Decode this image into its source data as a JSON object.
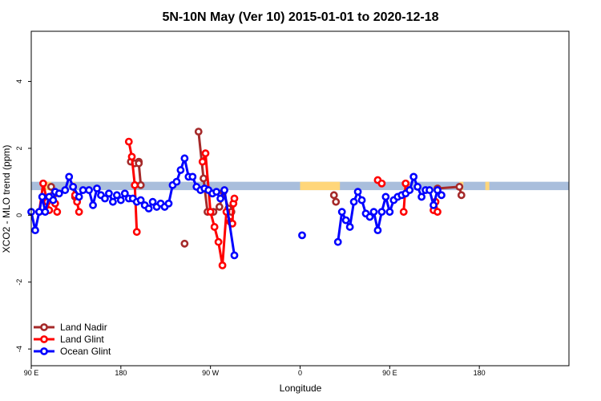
{
  "chart_data": {
    "type": "line",
    "title": "5N-10N May (Ver 10)   2015-01-01 to 2020-12-18",
    "xlabel": "Longitude",
    "ylabel": "XCO2 - MLO trend (ppm)",
    "xlim": [
      -90,
      180
    ],
    "ylim": [
      -4.5,
      5.5
    ],
    "xticks": [
      {
        "value": -90,
        "label": "90 E"
      },
      {
        "value": -45,
        "label": "180"
      },
      {
        "value": 0,
        "label": "90 W"
      },
      {
        "value": 45,
        "label": "0"
      },
      {
        "value": 90,
        "label": "90 E"
      },
      {
        "value": 135,
        "label": "180"
      }
    ],
    "yticks": [
      -4,
      -2,
      0,
      2,
      4
    ],
    "grid": false,
    "legend_position": "bottom-left",
    "land_band": {
      "y_range": [
        0.75,
        1.0
      ],
      "ocean_color": "#A9BEDC",
      "land_color": "#FFD67A",
      "land_segments": [
        [
          -84,
          -80
        ],
        [
          -69,
          -68
        ],
        [
          45,
          65
        ],
        [
          97,
          100
        ],
        [
          125,
          127
        ],
        [
          138,
          140
        ]
      ]
    },
    "series": [
      {
        "name": "Land Nadir",
        "color": "#A52A2A",
        "segments": [
          [
            [
              -80,
              0.85
            ],
            [
              -79,
              0.6
            ]
          ],
          [
            [
              -69,
              0.85
            ],
            [
              -68,
              0.55
            ]
          ],
          [
            [
              -40,
              1.6
            ],
            [
              -38,
              1.55
            ],
            [
              -36,
              1.6
            ]
          ],
          [
            [
              -36,
              1.55
            ],
            [
              -35,
              0.9
            ]
          ],
          [
            [
              -13,
              -0.85
            ]
          ],
          [
            [
              -6,
              2.5
            ],
            [
              -3.5,
              1.1
            ],
            [
              -1.5,
              0.1
            ],
            [
              1.5,
              0.1
            ],
            [
              4.5,
              0.25
            ],
            [
              6.5,
              0.7
            ],
            [
              9,
              0.2
            ],
            [
              10.5,
              0.1
            ]
          ],
          [
            [
              62,
              0.6
            ],
            [
              63,
              0.4
            ]
          ],
          [
            [
              114,
              0.8
            ],
            [
              125,
              0.85
            ],
            [
              126,
              0.6
            ]
          ]
        ]
      },
      {
        "name": "Land Glint",
        "color": "#FF0000",
        "segments": [
          [
            [
              -86,
              0.1
            ],
            [
              -84,
              0.95
            ],
            [
              -82,
              0.4
            ],
            [
              -81,
              0.15
            ]
          ],
          [
            [
              -78,
              0.35
            ],
            [
              -77,
              0.1
            ]
          ],
          [
            [
              -68,
              0.6
            ],
            [
              -67,
              0.4
            ],
            [
              -66,
              0.1
            ]
          ],
          [
            [
              -41,
              2.2
            ],
            [
              -39.5,
              1.75
            ],
            [
              -38,
              0.9
            ],
            [
              -37,
              -0.5
            ]
          ],
          [
            [
              -4,
              1.6
            ],
            [
              -2.5,
              1.85
            ],
            [
              0,
              0.1
            ],
            [
              2,
              -0.35
            ],
            [
              4,
              -0.8
            ],
            [
              6,
              -1.5
            ],
            [
              8,
              0.1
            ],
            [
              10,
              -0.2
            ],
            [
              11,
              -0.25
            ],
            [
              11.5,
              0.35
            ],
            [
              12,
              0.5
            ]
          ],
          [
            [
              84,
              1.05
            ],
            [
              86,
              0.95
            ]
          ],
          [
            [
              97,
              0.1
            ],
            [
              98,
              0.95
            ]
          ],
          [
            [
              112,
              0.15
            ],
            [
              113,
              0.4
            ],
            [
              114,
              0.1
            ]
          ]
        ]
      },
      {
        "name": "Ocean Glint",
        "color": "#0000FF",
        "segments": [
          [
            [
              -90,
              0.1
            ],
            [
              -88,
              -0.45
            ],
            [
              -86,
              0.1
            ],
            [
              -84.5,
              0.55
            ],
            [
              -83,
              0.1
            ],
            [
              -81,
              0.55
            ],
            [
              -79,
              0.45
            ],
            [
              -78,
              0.7
            ],
            [
              -76,
              0.65
            ],
            [
              -73,
              0.75
            ],
            [
              -71,
              1.15
            ],
            [
              -69,
              0.85
            ],
            [
              -66,
              0.55
            ],
            [
              -64,
              0.75
            ],
            [
              -61,
              0.75
            ],
            [
              -59,
              0.3
            ],
            [
              -57,
              0.8
            ],
            [
              -55,
              0.6
            ],
            [
              -53,
              0.5
            ],
            [
              -51,
              0.65
            ],
            [
              -49,
              0.4
            ],
            [
              -47,
              0.6
            ],
            [
              -45,
              0.45
            ],
            [
              -43,
              0.65
            ],
            [
              -41,
              0.5
            ],
            [
              -39,
              0.5
            ],
            [
              -37,
              0.4
            ],
            [
              -35,
              0.45
            ],
            [
              -33,
              0.3
            ],
            [
              -31,
              0.2
            ],
            [
              -29,
              0.4
            ],
            [
              -27,
              0.25
            ],
            [
              -25,
              0.35
            ],
            [
              -23,
              0.25
            ],
            [
              -21,
              0.35
            ],
            [
              -19,
              0.9
            ],
            [
              -17,
              1.0
            ],
            [
              -15,
              1.35
            ],
            [
              -13,
              1.7
            ],
            [
              -11,
              1.15
            ],
            [
              -9,
              1.15
            ],
            [
              -7,
              0.85
            ],
            [
              -5,
              0.75
            ],
            [
              -3,
              0.8
            ],
            [
              -1,
              0.75
            ],
            [
              1,
              0.65
            ],
            [
              3,
              0.7
            ],
            [
              5,
              0.5
            ],
            [
              7,
              0.75
            ],
            [
              12,
              -1.2
            ]
          ],
          [
            [
              46,
              -0.6
            ]
          ],
          [
            [
              64,
              -0.8
            ],
            [
              66,
              0.1
            ],
            [
              68,
              -0.15
            ],
            [
              70,
              -0.35
            ],
            [
              72,
              0.4
            ],
            [
              74,
              0.7
            ],
            [
              76,
              0.45
            ],
            [
              78,
              0.05
            ],
            [
              80,
              -0.05
            ],
            [
              82,
              0.1
            ],
            [
              84,
              -0.45
            ],
            [
              86,
              0.1
            ],
            [
              88,
              0.55
            ],
            [
              90,
              0.1
            ],
            [
              92,
              0.45
            ],
            [
              94,
              0.55
            ],
            [
              96,
              0.6
            ],
            [
              98,
              0.65
            ],
            [
              100,
              0.75
            ],
            [
              102,
              1.15
            ],
            [
              104,
              0.85
            ],
            [
              106,
              0.55
            ],
            [
              108,
              0.75
            ],
            [
              110,
              0.75
            ],
            [
              112,
              0.3
            ],
            [
              114,
              0.75
            ],
            [
              116,
              0.6
            ]
          ]
        ]
      }
    ]
  }
}
